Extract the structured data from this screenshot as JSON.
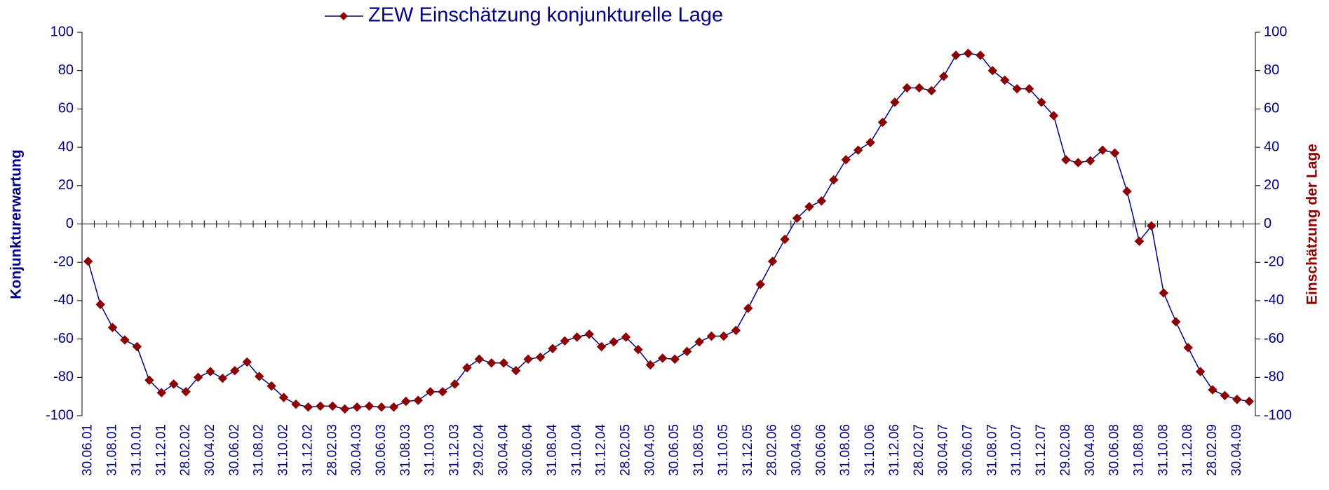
{
  "chart_data": {
    "type": "line",
    "y_label": "Konjunkturerwartung",
    "y2_label": "Einschätzung der Lage",
    "categories": [
      "30.06.01",
      null,
      "31.08.01",
      null,
      "31.10.01",
      null,
      "31.12.01",
      null,
      "28.02.02",
      null,
      "30.04.02",
      null,
      "30.06.02",
      null,
      "31.08.02",
      null,
      "31.10.02",
      null,
      "31.12.02",
      null,
      "28.02.03",
      null,
      "30.04.03",
      null,
      "30.06.03",
      null,
      "31.08.03",
      null,
      "31.10.03",
      null,
      "31.12.03",
      null,
      "29.02.04",
      null,
      "30.04.04",
      null,
      "30.06.04",
      null,
      "31.08.04",
      null,
      "31.10.04",
      null,
      "31.12.04",
      null,
      "28.02.05",
      null,
      "30.04.05",
      null,
      "30.06.05",
      null,
      "31.08.05",
      null,
      "31.10.05",
      null,
      "31.12.05",
      null,
      "28.02.06",
      null,
      "30.04.06",
      null,
      "30.06.06",
      null,
      "31.08.06",
      null,
      "31.10.06",
      null,
      "31.12.06",
      null,
      "28.02.07",
      null,
      "30.04.07",
      null,
      "30.06.07",
      null,
      "31.08.07",
      null,
      "31.10.07",
      null,
      "31.12.07",
      null,
      "29.02.08",
      null,
      "30.04.08",
      null,
      "30.06.08",
      null,
      "31.08.08",
      null,
      "31.10.08",
      null,
      "31.12.08",
      null,
      "28.02.09",
      null,
      "30.04.09",
      null
    ],
    "series": [
      {
        "name": "ZEW Einschätzung konjunkturelle Lage",
        "color": "#000080",
        "marker_color": "#8b0000",
        "axis": "y2",
        "values": [
          -19.5,
          -42,
          -54,
          -60.5,
          -64,
          -81.5,
          -88,
          -83.5,
          -87.5,
          -80,
          -77,
          -80.5,
          -76.5,
          -72,
          -79.5,
          -84.5,
          -90.5,
          -94,
          -95.5,
          -95,
          -95,
          -96.5,
          -95.5,
          -95,
          -95.5,
          -95.5,
          -92.5,
          -92,
          -87.5,
          -87.5,
          -83.5,
          -75,
          -70.5,
          -72.5,
          -72.5,
          -76.5,
          -70.5,
          -69.5,
          -65,
          -61,
          -59,
          -57.5,
          -64,
          -61.5,
          -59,
          -65.5,
          -73.5,
          -70,
          -70.5,
          -66.5,
          -61.5,
          -58.5,
          -58.5,
          -55.5,
          -44,
          -31.5,
          -19.5,
          -8,
          3,
          9,
          12,
          23,
          33.5,
          38.5,
          42.5,
          53,
          63.5,
          71,
          71,
          69.5,
          77,
          88,
          89,
          88,
          80,
          75,
          70.5,
          70.5,
          63.5,
          56.5,
          33.5,
          32,
          33,
          38.5,
          37,
          17,
          -9,
          -1,
          -36,
          -51,
          -64.5,
          -77,
          -86.5,
          -89.5,
          -91.5,
          -92.5
        ]
      }
    ],
    "ylim": [
      -100,
      100
    ],
    "yticks": [
      -100,
      -80,
      -60,
      -40,
      -20,
      0,
      20,
      40,
      60,
      80,
      100
    ],
    "y2lim": [
      -100,
      100
    ],
    "y2ticks": [
      -100,
      -80,
      -60,
      -40,
      -20,
      0,
      20,
      40,
      60,
      80,
      100
    ],
    "y_label_color": "#000080",
    "y2_label_color": "#8b0000"
  }
}
